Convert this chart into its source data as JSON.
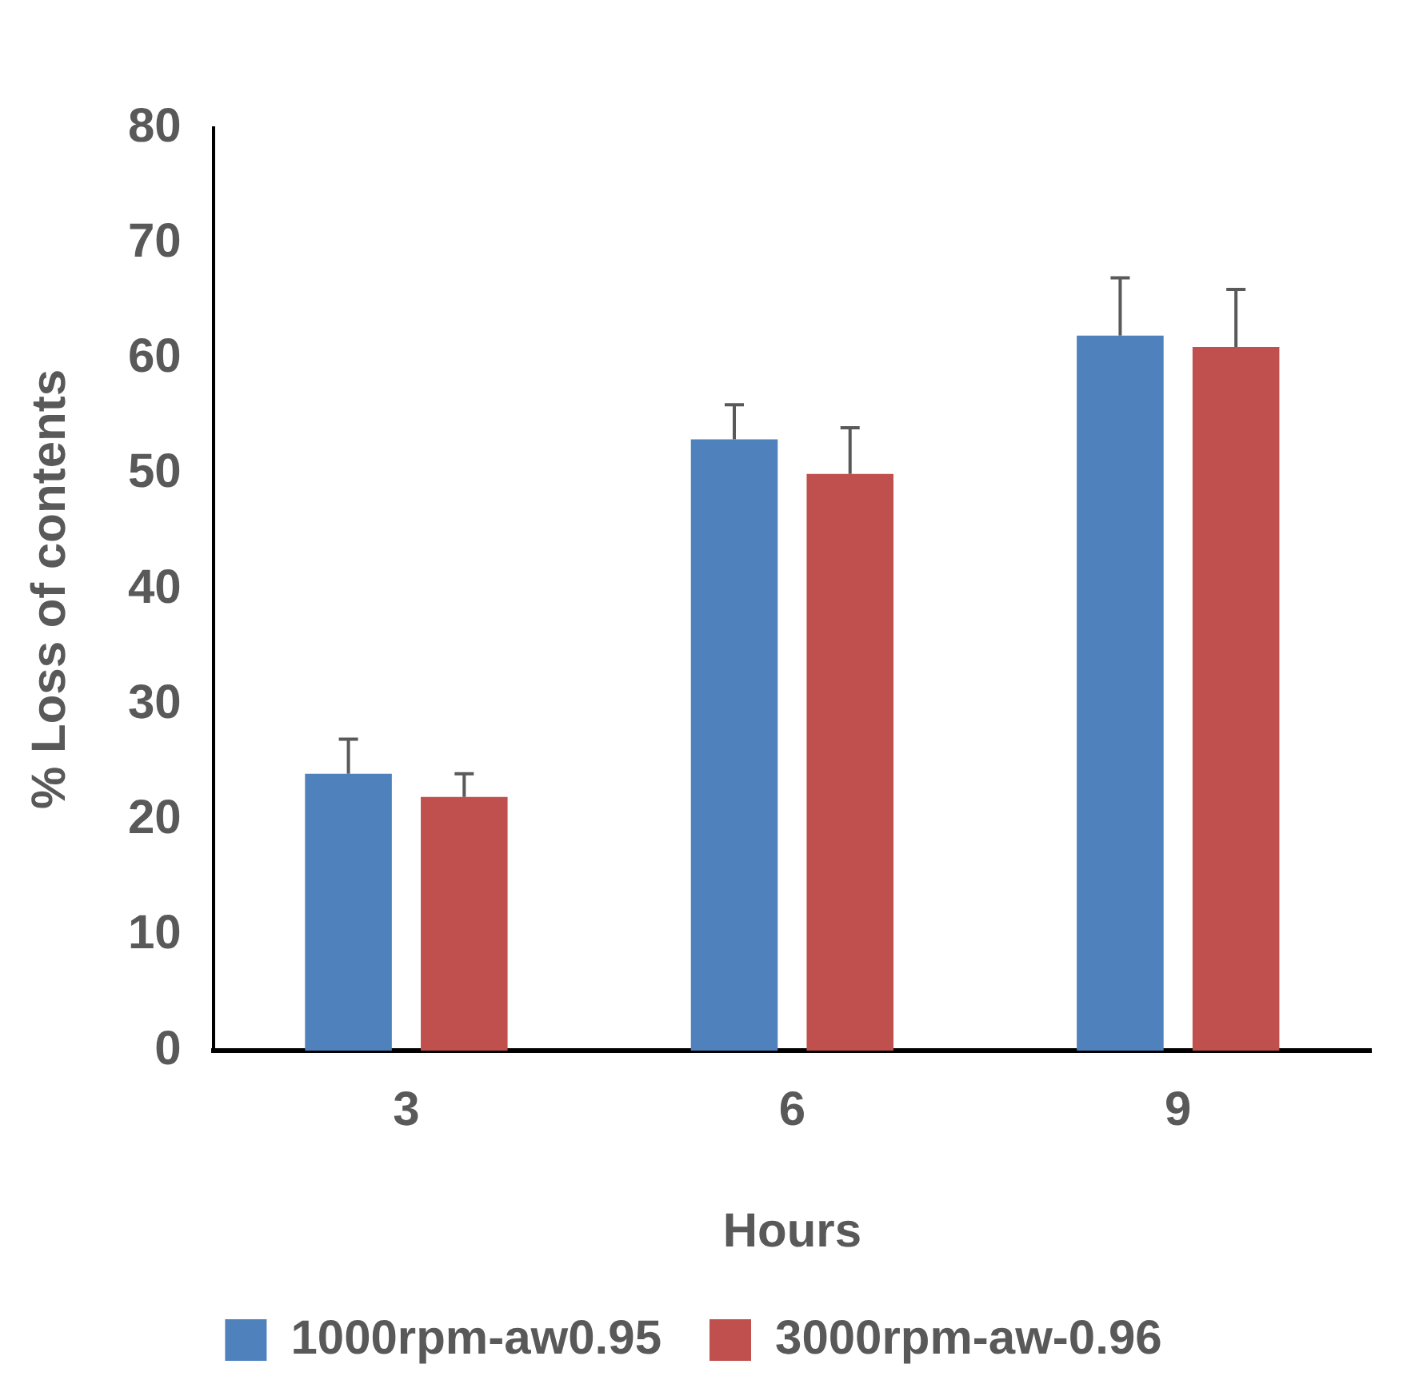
{
  "chart_data": {
    "type": "bar",
    "xlabel": "Hours",
    "ylabel": "% Loss of contents",
    "categories": [
      "3",
      "6",
      "9"
    ],
    "series": [
      {
        "name": "1000rpm-aw0.95",
        "color": "#4f81bd",
        "values": [
          24,
          53,
          62
        ],
        "errors": [
          [
            24,
            27
          ],
          [
            53,
            56
          ],
          [
            62,
            67
          ]
        ]
      },
      {
        "name": "3000rpm-aw-0.96",
        "color": "#c0504d",
        "values": [
          22,
          50,
          61
        ],
        "errors": [
          [
            22,
            24
          ],
          [
            50,
            54
          ],
          [
            61,
            66
          ]
        ]
      }
    ],
    "ylim": [
      0,
      80
    ],
    "yticks": [
      0,
      10,
      20,
      30,
      40,
      50,
      60,
      70,
      80
    ],
    "grid": false,
    "legend": "bottom"
  }
}
